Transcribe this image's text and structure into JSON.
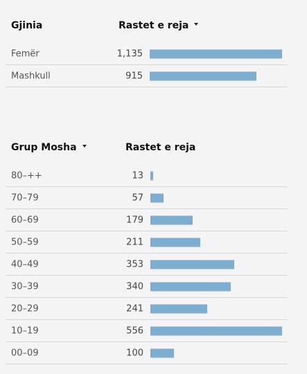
{
  "chart_data": [
    {
      "type": "bar",
      "orientation": "horizontal",
      "category_header": "Gjinia",
      "value_header": "Rastet e reja",
      "sortable_column": "value",
      "categories": [
        "Femër",
        "Mashkull"
      ],
      "values": [
        1135,
        915
      ],
      "value_labels": [
        "1,135",
        "915"
      ],
      "xlim": [
        0,
        1135
      ],
      "bar_color": "#7fadd0"
    },
    {
      "type": "bar",
      "orientation": "horizontal",
      "category_header": "Grup Mosha",
      "value_header": "Rastet e reja",
      "sortable_column": "category",
      "categories": [
        "80–++",
        "70–79",
        "60–69",
        "50–59",
        "40–49",
        "30–39",
        "20–29",
        "10–19",
        "00–09"
      ],
      "values": [
        13,
        57,
        179,
        211,
        353,
        340,
        241,
        556,
        100
      ],
      "value_labels": [
        "13",
        "57",
        "179",
        "211",
        "353",
        "340",
        "241",
        "556",
        "100"
      ],
      "xlim": [
        0,
        556
      ],
      "bar_color": "#7fadd0"
    }
  ]
}
